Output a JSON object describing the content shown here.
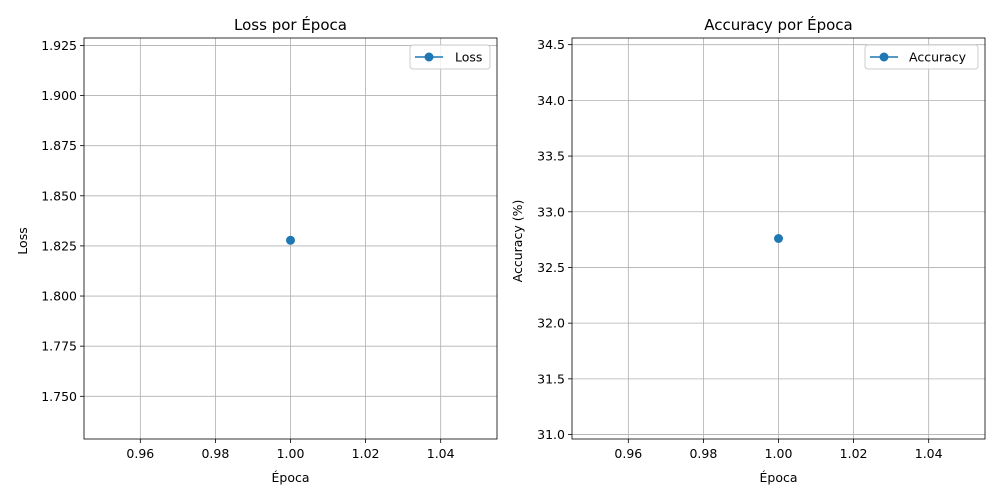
{
  "chart_data": [
    {
      "type": "line",
      "title": "Loss por Época",
      "xlabel": "Época",
      "ylabel": "Loss",
      "xlim": [
        0.945,
        1.055
      ],
      "ylim": [
        1.7287,
        1.9287
      ],
      "xticks": [
        0.96,
        0.98,
        1.0,
        1.02,
        1.04
      ],
      "xtick_labels": [
        "0.96",
        "0.98",
        "1.00",
        "1.02",
        "1.04"
      ],
      "yticks": [
        1.75,
        1.775,
        1.8,
        1.825,
        1.85,
        1.875,
        1.9,
        1.925
      ],
      "ytick_labels": [
        "1.750",
        "1.775",
        "1.800",
        "1.825",
        "1.850",
        "1.875",
        "1.900",
        "1.925"
      ],
      "grid": true,
      "legend_position": "top-right",
      "series": [
        {
          "name": "Loss",
          "color": "#1f77b4",
          "marker": "circle",
          "x": [
            1.0
          ],
          "y": [
            1.8278
          ]
        }
      ]
    },
    {
      "type": "line",
      "title": "Accuracy por Época",
      "xlabel": "Época",
      "ylabel": "Accuracy (%)",
      "xlim": [
        0.945,
        1.055
      ],
      "ylim": [
        30.96,
        34.56
      ],
      "xticks": [
        0.96,
        0.98,
        1.0,
        1.02,
        1.04
      ],
      "xtick_labels": [
        "0.96",
        "0.98",
        "1.00",
        "1.02",
        "1.04"
      ],
      "yticks": [
        31.0,
        31.5,
        32.0,
        32.5,
        33.0,
        33.5,
        34.0,
        34.5
      ],
      "ytick_labels": [
        "31.0",
        "31.5",
        "32.0",
        "32.5",
        "33.0",
        "33.5",
        "34.0",
        "34.5"
      ],
      "grid": true,
      "legend_position": "top-right",
      "series": [
        {
          "name": "Accuracy",
          "color": "#1f77b4",
          "marker": "circle",
          "x": [
            1.0
          ],
          "y": [
            32.76
          ]
        }
      ]
    }
  ]
}
